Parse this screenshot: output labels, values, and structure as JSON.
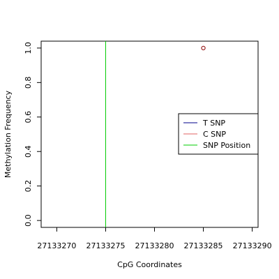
{
  "chart_data": {
    "type": "scatter",
    "xlabel": "CpG Coordinates",
    "ylabel": "Methylation Frequency",
    "xlim": [
      27133268.4,
      27133290.6
    ],
    "ylim": [
      -0.04,
      1.04
    ],
    "x_ticks": [
      27133270,
      27133275,
      27133280,
      27133285,
      27133290
    ],
    "x_tick_labels": [
      "27133270",
      "27133275",
      "27133280",
      "27133285",
      "27133290"
    ],
    "y_ticks": [
      0.0,
      0.2,
      0.4,
      0.6,
      0.8,
      1.0
    ],
    "y_tick_labels": [
      "0.0",
      "0.2",
      "0.4",
      "0.6",
      "0.8",
      "1.0"
    ],
    "grid": false,
    "legend_position": "right",
    "series": [
      {
        "name": "T SNP",
        "color": "#00008B",
        "points": []
      },
      {
        "name": "C SNP",
        "color": "#8B0000",
        "points": [
          {
            "x": 27133285,
            "y": 1.0
          }
        ]
      }
    ],
    "vlines": [
      {
        "name": "SNP Position",
        "x": 27133275,
        "color": "#00CC00"
      }
    ],
    "legend": [
      {
        "label": "T SNP",
        "color": "#00008B"
      },
      {
        "label": "C SNP",
        "color": "#E06060"
      },
      {
        "label": "SNP Position",
        "color": "#00CC00"
      }
    ],
    "point_marker_color": "#8B0000"
  }
}
